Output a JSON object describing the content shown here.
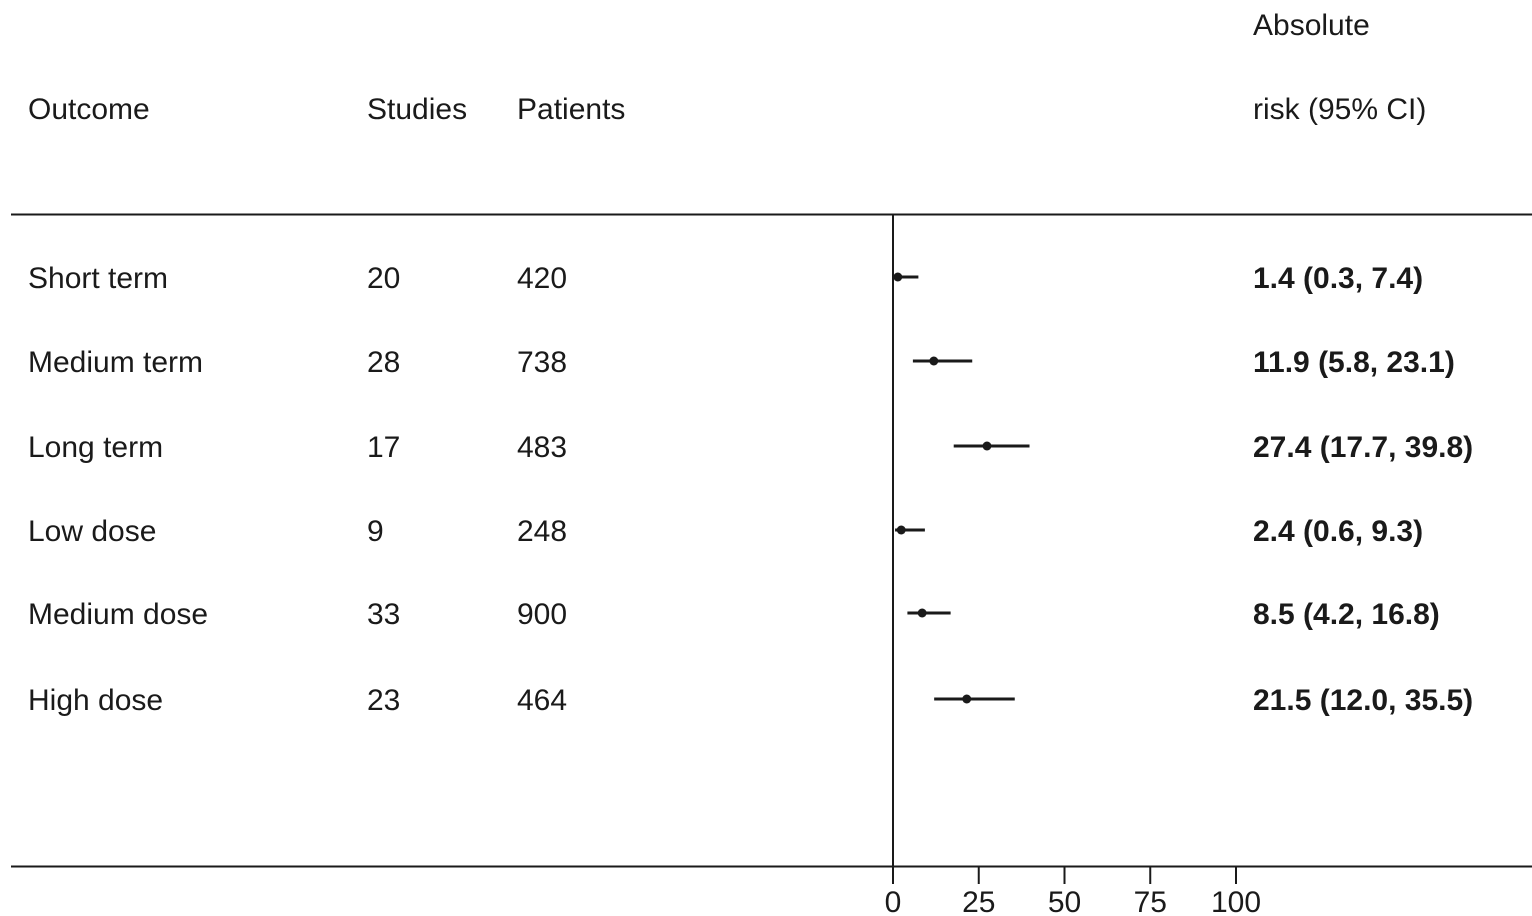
{
  "headers": {
    "outcome": "Outcome",
    "studies": "Studies",
    "patients": "Patients",
    "risk_line1": "Absolute",
    "risk_line2": "risk (95% CI)"
  },
  "chart_data": {
    "type": "forest",
    "xlim": [
      0,
      100
    ],
    "xticks": [
      0,
      25,
      50,
      75,
      100
    ],
    "xtick_labels": [
      "0",
      "25",
      "50",
      "75",
      "100"
    ],
    "reference_line": 0,
    "grid": false,
    "rows": [
      {
        "outcome": "Short term",
        "studies": "20",
        "patients": "420",
        "estimate": 1.4,
        "lower": 0.3,
        "upper": 7.4,
        "label": "1.4 (0.3, 7.4)"
      },
      {
        "outcome": "Medium term",
        "studies": "28",
        "patients": "738",
        "estimate": 11.9,
        "lower": 5.8,
        "upper": 23.1,
        "label": "11.9 (5.8, 23.1)"
      },
      {
        "outcome": "Long term",
        "studies": "17",
        "patients": "483",
        "estimate": 27.4,
        "lower": 17.7,
        "upper": 39.8,
        "label": "27.4 (17.7, 39.8)"
      },
      {
        "outcome": "Low dose",
        "studies": "9",
        "patients": "248",
        "estimate": 2.4,
        "lower": 0.6,
        "upper": 9.3,
        "label": "2.4 (0.6, 9.3)"
      },
      {
        "outcome": "Medium dose",
        "studies": "33",
        "patients": "900",
        "estimate": 8.5,
        "lower": 4.2,
        "upper": 16.8,
        "label": "8.5 (4.2, 16.8)"
      },
      {
        "outcome": "High dose",
        "studies": "23",
        "patients": "464",
        "estimate": 21.5,
        "lower": 12.0,
        "upper": 35.5,
        "label": "21.5 (12.0, 35.5)"
      }
    ]
  }
}
